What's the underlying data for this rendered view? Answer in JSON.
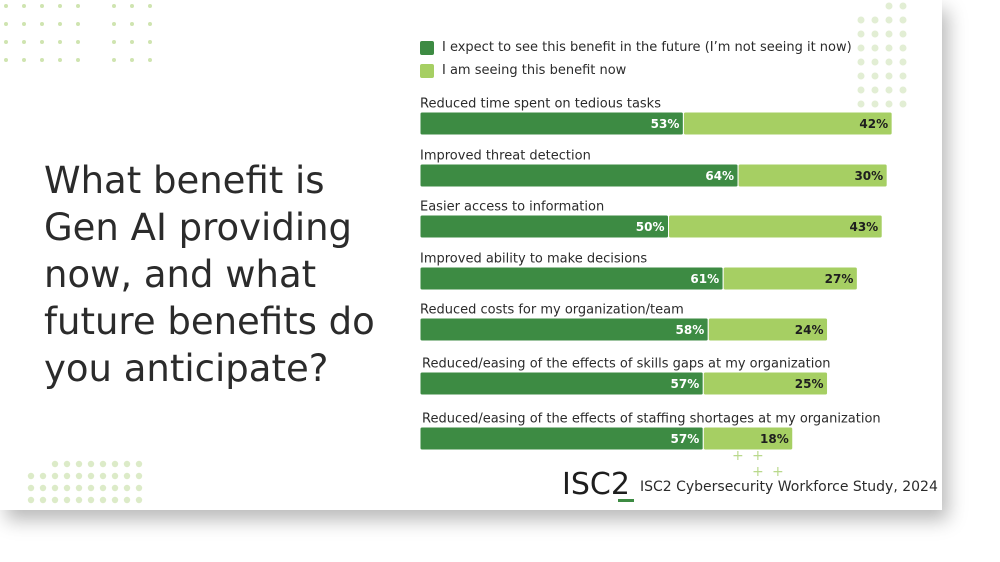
{
  "question": "What benefit is Gen AI providing now, and what future benefits do you anticipate?",
  "legend": [
    {
      "label": "I expect to see this benefit in the future (I’m not seeing it now)",
      "color": "#3d8b43"
    },
    {
      "label": "I am seeing this benefit now",
      "color": "#a6cf63"
    }
  ],
  "footer": {
    "logo_text": "ISC2",
    "source": "ISC2 Cybersecurity Workforce Study, 2024"
  },
  "chart_data": {
    "type": "bar",
    "orientation": "horizontal",
    "stacked": true,
    "categories": [
      "Reduced time spent on tedious tasks",
      "Improved threat detection",
      "Easier access to information",
      "Improved ability to make decisions",
      "Reduced costs for my organization/team",
      "Reduced/easing of the effects of skills gaps at my organization",
      "Reduced/easing of the effects of staffing shortages at my organization"
    ],
    "series": [
      {
        "name": "I expect to see this benefit in the future (I’m not seeing it now)",
        "color": "#3d8b43",
        "values": [
          53,
          64,
          50,
          61,
          58,
          57,
          57
        ]
      },
      {
        "name": "I am seeing this benefit now",
        "color": "#a6cf63",
        "values": [
          42,
          30,
          43,
          27,
          24,
          25,
          18
        ]
      }
    ],
    "value_suffix": "%",
    "xlim": [
      0,
      100
    ]
  }
}
